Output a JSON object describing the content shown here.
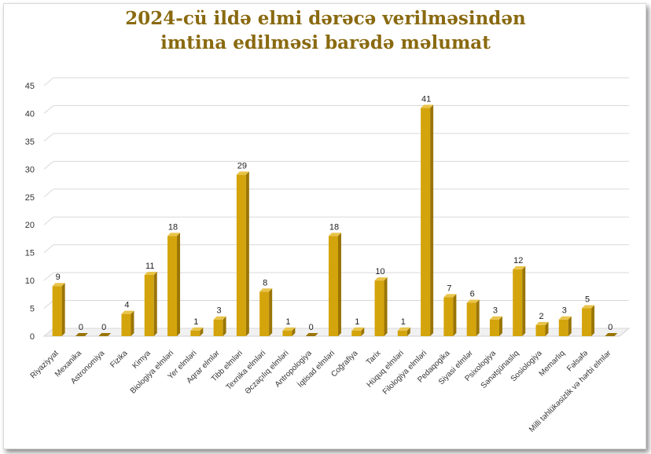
{
  "chart_data": {
    "type": "bar",
    "title_line1": "2024-cü ildə elmi dərəcə verilməsindən",
    "title_line2": "imtina edilməsi barədə məlumat",
    "xlabel": "",
    "ylabel": "",
    "ylim": [
      0,
      45
    ],
    "yticks": [
      0,
      5,
      10,
      15,
      20,
      25,
      30,
      35,
      40,
      45
    ],
    "grid": true,
    "legend": "none",
    "bar_color": "#d4a40c",
    "bar_side_color": "#9a7505",
    "bar_top_color": "#e9c44a",
    "categories": [
      "Riyaziyyat",
      "Mexanika",
      "Astronomiya",
      "Fizika",
      "Kimya",
      "Biologiya elmləri",
      "Yer elmləri",
      "Aqrar elmlər",
      "Tibb elmləri",
      "Texnika elmləri",
      "Əczaçılıq elmləri",
      "Antropologiya",
      "İqtisad elmləri",
      "Coğrafiya",
      "Tarix",
      "Hüquq elmləri",
      "Filologiya elmləri",
      "Pedaqogika",
      "Siyasi elmlər",
      "Psixologiya",
      "Sənətşünaslıq",
      "Sosiologiya",
      "Memarlıq",
      "Fəlsəfə",
      "Milli təhlükəsizlik və hərbi elmlər"
    ],
    "values": [
      9,
      0,
      0,
      4,
      11,
      18,
      1,
      3,
      29,
      8,
      1,
      0,
      18,
      1,
      10,
      1,
      41,
      7,
      6,
      3,
      12,
      2,
      3,
      5,
      0
    ]
  }
}
